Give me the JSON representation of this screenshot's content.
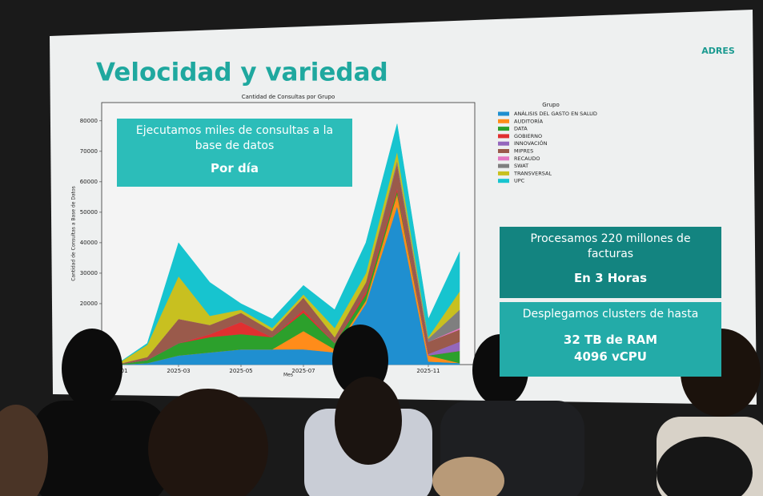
{
  "slide": {
    "title": "Velocidad y variedad",
    "logo": "ADRES",
    "box1": {
      "text": "Ejecutamos miles de consultas a la base de datos",
      "bold": "Por día"
    },
    "box2": {
      "text": "Procesamos 220 millones de facturas",
      "bold": "En 3 Horas"
    },
    "box3": {
      "text": "Desplegamos clusters de hasta",
      "bold": [
        "32 TB de RAM",
        "4096 vCPU"
      ]
    }
  },
  "chart_data": {
    "type": "stacked_area",
    "title": "Cantidad de Consultas por Grupo",
    "x_label": "Mes",
    "y_label": "Cantidad de Consultas a Base de Datos",
    "legend_title": "Grupo",
    "categories": [
      "2025-01",
      null,
      "2025-03",
      null,
      "2025-05",
      null,
      "2025-07",
      null,
      null,
      null,
      "2025-11",
      null
    ],
    "ylim": [
      0,
      86000
    ],
    "yticks": [
      20000,
      30000,
      40000,
      50000,
      60000,
      70000,
      80000
    ],
    "series": [
      {
        "name": "ANÁLISIS DEL GASTO EN SALUD",
        "color": "#1f8fd0",
        "values": [
          0,
          500,
          3000,
          4000,
          5000,
          5000,
          5000,
          4000,
          20000,
          52000,
          1000,
          500
        ]
      },
      {
        "name": "AUDITORÍA",
        "color": "#ff8c1a",
        "values": [
          0,
          0,
          0,
          0,
          0,
          0,
          6000,
          1000,
          1000,
          4000,
          2000,
          0
        ]
      },
      {
        "name": "DATA",
        "color": "#2ca02c",
        "values": [
          0,
          1000,
          4000,
          5000,
          5000,
          4000,
          6000,
          2000,
          2000,
          1000,
          0,
          4000
        ]
      },
      {
        "name": "GOBIERNO",
        "color": "#e03030",
        "values": [
          0,
          0,
          0,
          1000,
          4000,
          0,
          1000,
          0,
          1000,
          1000,
          0,
          0
        ]
      },
      {
        "name": "INNOVACIÓN",
        "color": "#9467bd",
        "values": [
          0,
          0,
          0,
          0,
          0,
          0,
          0,
          0,
          0,
          0,
          500,
          3000
        ]
      },
      {
        "name": "MIPRES",
        "color": "#9a5a4b",
        "values": [
          0,
          1000,
          8000,
          3000,
          3000,
          2000,
          4000,
          2000,
          3000,
          8000,
          4000,
          4000
        ]
      },
      {
        "name": "RECAUDO",
        "color": "#e377c2",
        "values": [
          0,
          0,
          0,
          0,
          0,
          0,
          0,
          0,
          0,
          0,
          0,
          500
        ]
      },
      {
        "name": "SWAT",
        "color": "#7f7f7f",
        "values": [
          0,
          0,
          0,
          0,
          0,
          0,
          0,
          0,
          0,
          1000,
          1000,
          6000
        ]
      },
      {
        "name": "TRANSVERSAL",
        "color": "#c8c020",
        "values": [
          0,
          4000,
          14000,
          3000,
          1000,
          1000,
          1000,
          3000,
          3000,
          3000,
          500,
          6000
        ]
      },
      {
        "name": "UPC",
        "color": "#17c4cf",
        "values": [
          0,
          500,
          11000,
          11000,
          2000,
          3000,
          3000,
          6000,
          10000,
          9000,
          6000,
          13000
        ]
      }
    ]
  }
}
